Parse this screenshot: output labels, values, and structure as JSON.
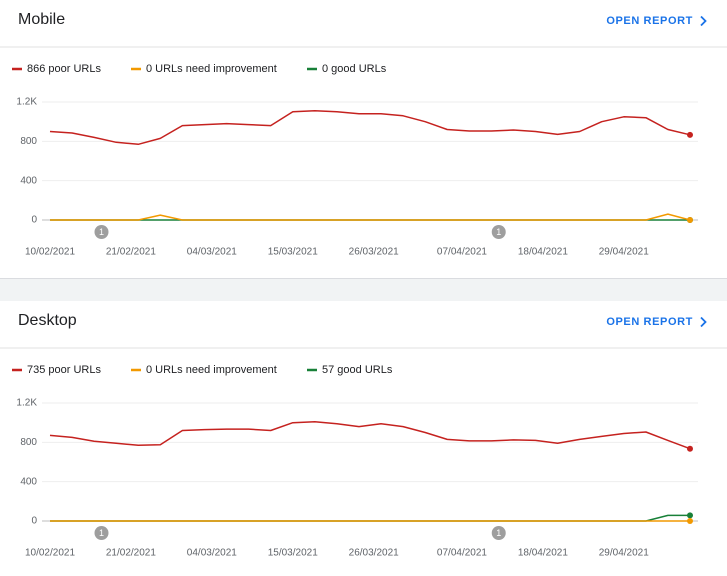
{
  "chart_data": [
    {
      "type": "line",
      "title": "Mobile",
      "action": "OPEN REPORT",
      "x": [
        "10/02/2021",
        "13/02/2021",
        "16/02/2021",
        "19/02/2021",
        "22/02/2021",
        "25/02/2021",
        "28/02/2021",
        "03/03/2021",
        "06/03/2021",
        "09/03/2021",
        "12/03/2021",
        "15/03/2021",
        "18/03/2021",
        "21/03/2021",
        "24/03/2021",
        "27/03/2021",
        "30/03/2021",
        "02/04/2021",
        "05/04/2021",
        "08/04/2021",
        "11/04/2021",
        "14/04/2021",
        "17/04/2021",
        "20/04/2021",
        "23/04/2021",
        "26/04/2021",
        "29/04/2021",
        "02/05/2021",
        "05/05/2021",
        "08/05/2021"
      ],
      "series": [
        {
          "name": "866 poor URLs",
          "color": "#c5221f",
          "values": [
            900,
            885,
            840,
            790,
            770,
            830,
            960,
            970,
            980,
            970,
            960,
            1100,
            1110,
            1100,
            1080,
            1080,
            1060,
            1000,
            920,
            905,
            905,
            915,
            900,
            870,
            900,
            1000,
            1050,
            1040,
            920,
            866
          ]
        },
        {
          "name": "0 URLs need improvement",
          "color": "#f29900",
          "values": [
            0,
            0,
            0,
            0,
            0,
            50,
            0,
            0,
            0,
            0,
            0,
            0,
            0,
            0,
            0,
            0,
            0,
            0,
            0,
            0,
            0,
            0,
            0,
            0,
            0,
            0,
            0,
            0,
            60,
            0
          ]
        },
        {
          "name": "0 good URLs",
          "color": "#188038",
          "values": [
            0,
            0,
            0,
            0,
            0,
            0,
            0,
            0,
            0,
            0,
            0,
            0,
            0,
            0,
            0,
            0,
            0,
            0,
            0,
            0,
            0,
            0,
            0,
            0,
            0,
            0,
            0,
            0,
            0,
            0
          ]
        }
      ],
      "ylim": [
        0,
        1200
      ],
      "yticks": [
        0,
        400,
        800,
        {
          "value": 1200,
          "label": "1.2K"
        }
      ],
      "grid": true,
      "xticks": [
        "10/02/2021",
        "21/02/2021",
        "04/03/2021",
        "15/03/2021",
        "26/03/2021",
        "07/04/2021",
        "18/04/2021",
        "29/04/2021"
      ],
      "annotations": [
        {
          "x": "17/02/2021",
          "label": "1"
        },
        {
          "x": "12/04/2021",
          "label": "1"
        }
      ]
    },
    {
      "type": "line",
      "title": "Desktop",
      "action": "OPEN REPORT",
      "x": [
        "10/02/2021",
        "13/02/2021",
        "16/02/2021",
        "19/02/2021",
        "22/02/2021",
        "25/02/2021",
        "28/02/2021",
        "03/03/2021",
        "06/03/2021",
        "09/03/2021",
        "12/03/2021",
        "15/03/2021",
        "18/03/2021",
        "21/03/2021",
        "24/03/2021",
        "27/03/2021",
        "30/03/2021",
        "02/04/2021",
        "05/04/2021",
        "08/04/2021",
        "11/04/2021",
        "14/04/2021",
        "17/04/2021",
        "20/04/2021",
        "23/04/2021",
        "26/04/2021",
        "29/04/2021",
        "02/05/2021",
        "05/05/2021",
        "08/05/2021"
      ],
      "series": [
        {
          "name": "735 poor URLs",
          "color": "#c5221f",
          "values": [
            870,
            850,
            810,
            790,
            770,
            775,
            920,
            930,
            935,
            935,
            920,
            1000,
            1010,
            990,
            960,
            990,
            960,
            900,
            830,
            815,
            815,
            825,
            820,
            790,
            830,
            860,
            890,
            905,
            820,
            735
          ]
        },
        {
          "name": "0 URLs need improvement",
          "color": "#f29900",
          "values": [
            0,
            0,
            0,
            0,
            0,
            0,
            0,
            0,
            0,
            0,
            0,
            0,
            0,
            0,
            0,
            0,
            0,
            0,
            0,
            0,
            0,
            0,
            0,
            0,
            0,
            0,
            0,
            0,
            0,
            0
          ]
        },
        {
          "name": "57 good URLs",
          "color": "#188038",
          "values": [
            0,
            0,
            0,
            0,
            0,
            0,
            0,
            0,
            0,
            0,
            0,
            0,
            0,
            0,
            0,
            0,
            0,
            0,
            0,
            0,
            0,
            0,
            0,
            0,
            0,
            0,
            0,
            0,
            57,
            57
          ]
        }
      ],
      "ylim": [
        0,
        1200
      ],
      "yticks": [
        0,
        400,
        800,
        {
          "value": 1200,
          "label": "1.2K"
        }
      ],
      "grid": true,
      "xticks": [
        "10/02/2021",
        "21/02/2021",
        "04/03/2021",
        "15/03/2021",
        "26/03/2021",
        "07/04/2021",
        "18/04/2021",
        "29/04/2021"
      ],
      "annotations": [
        {
          "x": "17/02/2021",
          "label": "1"
        },
        {
          "x": "12/04/2021",
          "label": "1"
        }
      ]
    }
  ]
}
